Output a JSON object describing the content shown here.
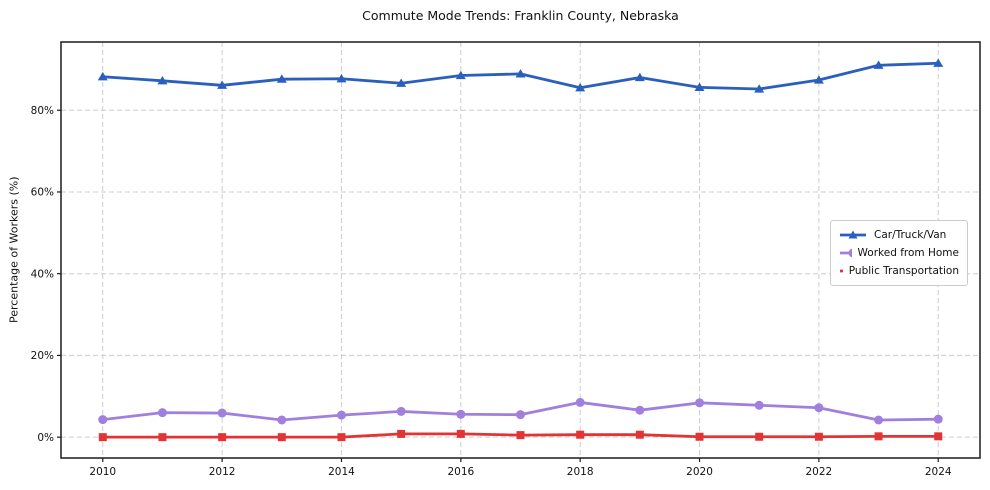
{
  "chart_data": {
    "type": "line",
    "title": "Commute Mode Trends: Franklin County, Nebraska",
    "xlabel": "",
    "ylabel": "Percentage of Workers (%)",
    "x": [
      2010,
      2011,
      2012,
      2013,
      2014,
      2015,
      2016,
      2017,
      2018,
      2019,
      2020,
      2021,
      2022,
      2023,
      2024
    ],
    "x_ticks": [
      2010,
      2012,
      2014,
      2016,
      2018,
      2020,
      2022,
      2024
    ],
    "x_tick_labels": [
      "2010",
      "2012",
      "2014",
      "2016",
      "2018",
      "2020",
      "2022",
      "2024"
    ],
    "y_ticks": [
      0,
      20,
      40,
      60,
      80
    ],
    "y_tick_labels": [
      "0%",
      "20%",
      "40%",
      "60%",
      "80%"
    ],
    "xlim": [
      2009.3,
      2024.7
    ],
    "ylim": [
      -5.1,
      96.7
    ],
    "grid": true,
    "grid_style": "dashed",
    "legend_position": "center right",
    "series": [
      {
        "name": "Car/Truck/Van",
        "color": "#2b5fbe",
        "marker": "triangle",
        "values": [
          88.2,
          87.2,
          86.1,
          87.6,
          87.7,
          86.6,
          88.5,
          88.9,
          85.5,
          88.0,
          85.6,
          85.2,
          87.4,
          91.0,
          91.5
        ]
      },
      {
        "name": "Worked from Home",
        "color": "#a080dc",
        "marker": "circle",
        "values": [
          4.3,
          6.0,
          5.9,
          4.2,
          5.4,
          6.3,
          5.6,
          5.5,
          8.5,
          6.6,
          8.4,
          7.8,
          7.2,
          4.2,
          4.4
        ]
      },
      {
        "name": "Public Transportation",
        "color": "#e23434",
        "marker": "square",
        "values": [
          0.0,
          0.0,
          0.0,
          0.0,
          0.0,
          0.8,
          0.8,
          0.5,
          0.6,
          0.6,
          0.1,
          0.1,
          0.1,
          0.2,
          0.2
        ]
      }
    ]
  }
}
